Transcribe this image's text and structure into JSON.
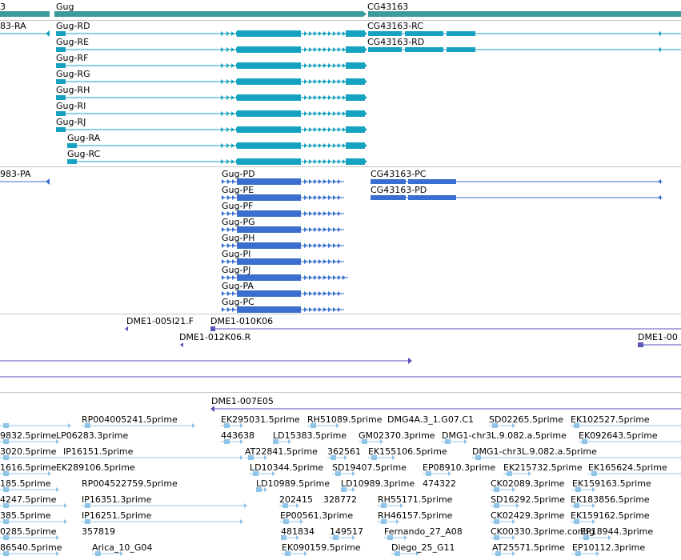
{
  "colors": {
    "gene": "#3c9b9b",
    "transcript_cyan": "#16a2c0",
    "transcript_blue": "#3a6fd0",
    "clone": "#5a55b8",
    "est": "#8fc4e8",
    "separator": "#c8c8c8"
  },
  "genes": [
    {
      "id": "g-left",
      "label": "3"
    },
    {
      "id": "g-gug",
      "label": "Gug"
    },
    {
      "id": "g-cg43163",
      "label": "CG43163"
    }
  ],
  "transcripts_a": [
    {
      "label": "83-RA"
    },
    {
      "label": "Gug-RD"
    },
    {
      "label": "Gug-RE"
    },
    {
      "label": "Gug-RF"
    },
    {
      "label": "Gug-RG"
    },
    {
      "label": "Gug-RH"
    },
    {
      "label": "Gug-RI"
    },
    {
      "label": "Gug-RJ"
    },
    {
      "label": "Gug-RA"
    },
    {
      "label": "Gug-RC"
    },
    {
      "label": "CG43163-RC"
    },
    {
      "label": "CG43163-RD"
    }
  ],
  "transcripts_b": [
    {
      "label": "983-PA"
    },
    {
      "label": "Gug-PD"
    },
    {
      "label": "Gug-PE"
    },
    {
      "label": "Gug-PF"
    },
    {
      "label": "Gug-PG"
    },
    {
      "label": "Gug-PH"
    },
    {
      "label": "Gug-PI"
    },
    {
      "label": "Gug-PJ"
    },
    {
      "label": "Gug-PA"
    },
    {
      "label": "Gug-PC"
    },
    {
      "label": "CG43163-PC"
    },
    {
      "label": "CG43163-PD"
    }
  ],
  "clones": [
    {
      "label": "DME1-005I21.F"
    },
    {
      "label": "DME1-010K06"
    },
    {
      "label": "DME1-012K06.R"
    },
    {
      "label": "DME1-00"
    },
    {
      "label": "DME1-007E05"
    }
  ],
  "ests": [
    {
      "label": "RP004005241.5prime"
    },
    {
      "label": "EK295031.5prime"
    },
    {
      "label": "RH51089.5prime"
    },
    {
      "label": "DMG4A.3_1.G07.C1"
    },
    {
      "label": "SD02265.5prime"
    },
    {
      "label": "EK102527.5prime"
    },
    {
      "label": "9832.5prime"
    },
    {
      "label": "LP06283.3prime"
    },
    {
      "label": "443638"
    },
    {
      "label": "LD15383.5prime"
    },
    {
      "label": "GM02370.3prime"
    },
    {
      "label": "DMG1-chr3L.9.082.a.5prime"
    },
    {
      "label": "EK092643.5prime"
    },
    {
      "label": "3020.5prime"
    },
    {
      "label": "IP16151.5prime"
    },
    {
      "label": "AT22841.5prime"
    },
    {
      "label": "362561"
    },
    {
      "label": "EK155106.5prime"
    },
    {
      "label": "DMG1-chr3L.9.082.a.5prime"
    },
    {
      "label": "1616.5prime"
    },
    {
      "label": "EK289106.5prime"
    },
    {
      "label": "LD10344.5prime"
    },
    {
      "label": "SD19407.5prime"
    },
    {
      "label": "EP08910.3prime"
    },
    {
      "label": "EK215732.5prime"
    },
    {
      "label": "EK165624.5prime"
    },
    {
      "label": "185.5prime"
    },
    {
      "label": "RP004522759.5prime"
    },
    {
      "label": "LD10989.5prime"
    },
    {
      "label": "LD10989.3prime"
    },
    {
      "label": "474322"
    },
    {
      "label": "CK02089.3prime"
    },
    {
      "label": "EK159163.5prime"
    },
    {
      "label": "4247.5prime"
    },
    {
      "label": "IP16351.3prime"
    },
    {
      "label": "202415"
    },
    {
      "label": "328772"
    },
    {
      "label": "RH55171.5prime"
    },
    {
      "label": "SD16292.5prime"
    },
    {
      "label": "EK183856.5prime"
    },
    {
      "label": "385.5prime"
    },
    {
      "label": "IP16251.5prime"
    },
    {
      "label": "EP00561.3prime"
    },
    {
      "label": "RH46157.5prime"
    },
    {
      "label": "CK02429.3prime"
    },
    {
      "label": "EK159162.5prime"
    },
    {
      "label": "0285.5prime"
    },
    {
      "label": "357819"
    },
    {
      "label": "481834"
    },
    {
      "label": "149517"
    },
    {
      "label": "Fernando_27_A08"
    },
    {
      "label": "CK00330.3prime.contig"
    },
    {
      "label": "EP18944.3prime"
    },
    {
      "label": "86540.5prime"
    },
    {
      "label": "Arica_10_G04"
    },
    {
      "label": "EK090159.5prime"
    },
    {
      "label": "Diego_25_G11"
    },
    {
      "label": "AT25571.5prime"
    },
    {
      "label": "EP10112.3prime"
    }
  ]
}
